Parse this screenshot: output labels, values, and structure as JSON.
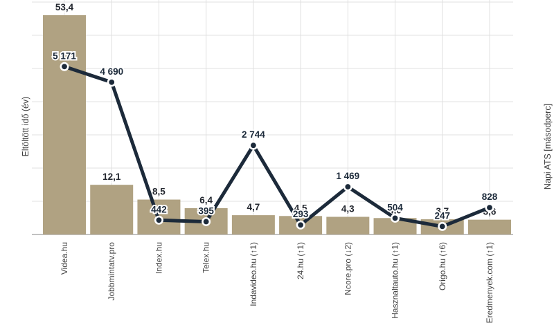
{
  "chart_data": {
    "type": "bar",
    "combo": "bar+line",
    "title": "",
    "categories": [
      "Videa.hu",
      "Jobbmintatv.pro",
      "Index.hu",
      "Telex.hu",
      "Indavideo.hu (↑1)",
      "24.hu (↑1)",
      "Ncore.pro (↓2)",
      "Hasznaltauto.hu (↑1)",
      "Origo.hu (↑6)",
      "Eredmenyek.com (↑1)"
    ],
    "series": [
      {
        "name": "Eltöltött idő (év)",
        "type": "bar",
        "axis": "left",
        "values": [
          53.4,
          12.1,
          8.5,
          6.4,
          4.7,
          4.5,
          4.3,
          4.0,
          3.7,
          3.6
        ],
        "labels": [
          "53,4",
          "12,1",
          "8,5",
          "6,4",
          "4,7",
          "4,5",
          "4,3",
          "4,0",
          "3,7",
          "3,6"
        ],
        "color": "#b0a282"
      },
      {
        "name": "Napi ATS [másodperc]",
        "type": "line",
        "axis": "right",
        "values": [
          5171,
          4690,
          442,
          395,
          2744,
          293,
          1469,
          504,
          247,
          828
        ],
        "labels": [
          "5 171",
          "4 690",
          "442",
          "395",
          "2 744",
          "293",
          "1 469",
          "504",
          "247",
          "828"
        ],
        "color": "#1c2a3a"
      }
    ],
    "ylabel_left": "Eltöltött idő (év)",
    "ylabel_right": "Napi ATS [másodperc]",
    "xlabel": "",
    "axis_ranges": {
      "left": [
        0,
        53.4
      ],
      "right": [
        0,
        7100
      ]
    },
    "grid": true,
    "legend": "none"
  },
  "colors": {
    "bar_fill": "#b0a282",
    "line_stroke": "#1c2a3a",
    "point_fill": "#1c2a3a",
    "point_ring": "#ffffff",
    "bar_label_text": "#23272f",
    "line_label_text": "#1c2a3a",
    "label_halo": "#ffffff",
    "category_text": "#424242",
    "axis_title_text": "#3c3c3c",
    "gridline": "#e0e0e0",
    "axis_line": "#9e9e9e",
    "background": "#ffffff"
  }
}
